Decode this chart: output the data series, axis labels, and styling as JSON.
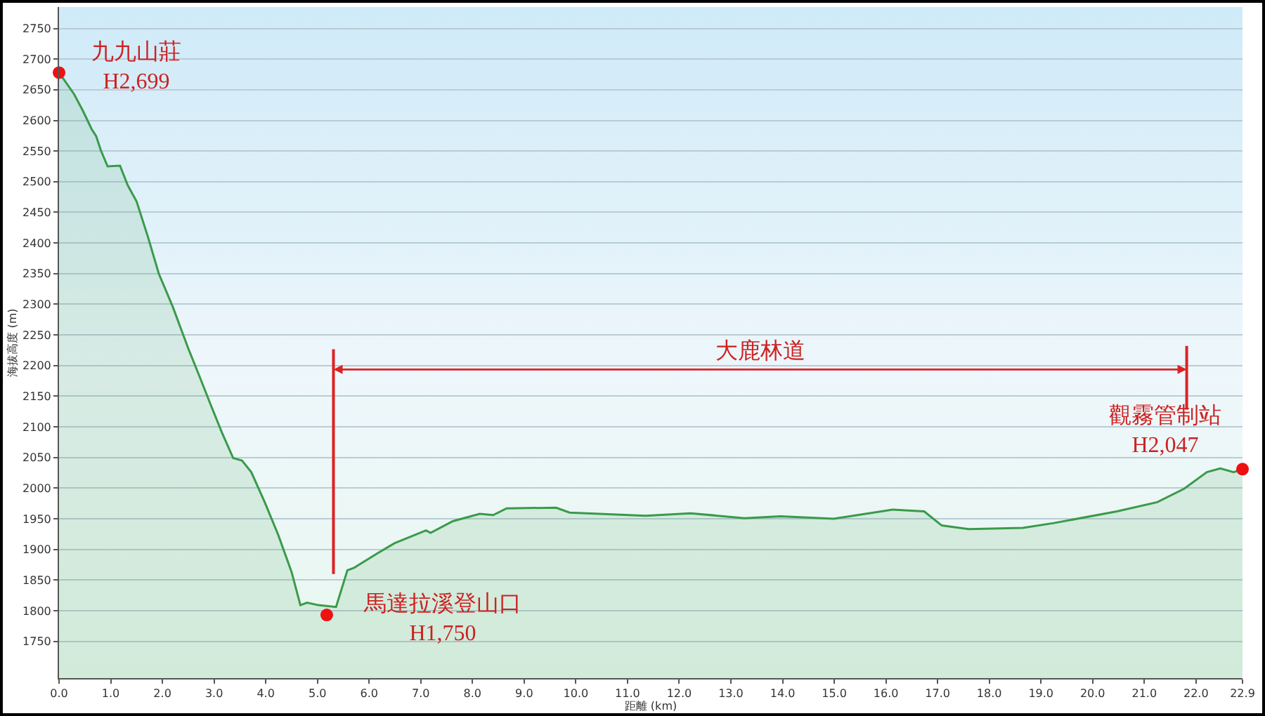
{
  "chart_data": {
    "type": "area",
    "xlabel": "距離 (km)",
    "ylabel": "海拔高度 (m)",
    "xlim": [
      0,
      22.9
    ],
    "ylim": [
      1690,
      2785
    ],
    "xticks": [
      {
        "value": 0,
        "label": "0.0"
      },
      {
        "value": 1,
        "label": "1.0"
      },
      {
        "value": 2,
        "label": "2.0"
      },
      {
        "value": 3,
        "label": "3.0"
      },
      {
        "value": 4,
        "label": "4.0"
      },
      {
        "value": 5,
        "label": "5.0"
      },
      {
        "value": 6,
        "label": "6.0"
      },
      {
        "value": 7,
        "label": "7.0"
      },
      {
        "value": 8,
        "label": "8.0"
      },
      {
        "value": 9,
        "label": "9.0"
      },
      {
        "value": 10,
        "label": "10.0"
      },
      {
        "value": 11,
        "label": "11.0"
      },
      {
        "value": 12,
        "label": "12.0"
      },
      {
        "value": 13,
        "label": "13.0"
      },
      {
        "value": 14,
        "label": "14.0"
      },
      {
        "value": 15,
        "label": "15.0"
      },
      {
        "value": 16,
        "label": "16.0"
      },
      {
        "value": 17,
        "label": "17.0"
      },
      {
        "value": 18,
        "label": "18.0"
      },
      {
        "value": 19,
        "label": "19.0"
      },
      {
        "value": 20,
        "label": "20.0"
      },
      {
        "value": 21,
        "label": "21.0"
      },
      {
        "value": 22,
        "label": "22.0"
      },
      {
        "value": 22.9,
        "label": "22.9"
      }
    ],
    "yticks": [
      1750,
      1800,
      1850,
      1900,
      1950,
      2000,
      2050,
      2100,
      2150,
      2200,
      2250,
      2300,
      2350,
      2400,
      2450,
      2500,
      2550,
      2600,
      2650,
      2700,
      2750
    ],
    "grid": "y",
    "series": [
      {
        "color": "#3a9a4a",
        "marker": "none",
        "x": [
          0,
          0.29,
          0.46,
          0.63,
          0.72,
          0.81,
          0.94,
          1.18,
          1.33,
          1.5,
          1.72,
          1.93,
          2.2,
          2.5,
          2.72,
          2.93,
          3.15,
          3.37,
          3.54,
          3.72,
          3.98,
          4.24,
          4.5,
          4.67,
          4.8,
          5.02,
          5.36,
          5.58,
          5.71,
          6.15,
          6.49,
          7.1,
          7.19,
          7.62,
          8.14,
          8.4,
          8.66,
          9.62,
          9.88,
          11.35,
          12.22,
          13.26,
          13.96,
          14.99,
          16.13,
          16.74,
          17.08,
          17.6,
          18.65,
          19.25,
          20.47,
          21.25,
          21.77,
          22.21,
          22.47,
          22.73,
          22.9
        ],
        "values": [
          2678,
          2643,
          2616,
          2586,
          2574,
          2551,
          2525,
          2526,
          2494,
          2468,
          2410,
          2350,
          2296,
          2228,
          2182,
          2137,
          2091,
          2049,
          2045,
          2026,
          1977,
          1924,
          1863,
          1809,
          1813,
          1809,
          1806,
          1866,
          1870,
          1893,
          1910,
          1931,
          1927,
          1946,
          1958,
          1956,
          1967,
          1968,
          1960,
          1955,
          1959,
          1951,
          1954,
          1950,
          1965,
          1962,
          1939,
          1933,
          1935,
          1943,
          1962,
          1977,
          1999,
          2026,
          2032,
          2026,
          2031
        ]
      },
      {
        "type": "scatter",
        "color": "#ee1111",
        "marker": "circle",
        "x": [
          0,
          5.18,
          22.9
        ],
        "values": [
          2678,
          1793,
          2031
        ]
      }
    ],
    "annotations": [
      {
        "text": "九九山莊\nH2,699",
        "x": 0,
        "y": 2678
      },
      {
        "text": "馬達拉溪登山口\nH1,750",
        "x": 5.18,
        "y": 1793
      },
      {
        "text": "觀霧管制站\nH2,047",
        "x": 22.9,
        "y": 2031
      },
      "大鹿林道"
    ],
    "ref_lines": [
      {
        "axis": "x",
        "value": 5.31,
        "color": "#dd2222"
      },
      {
        "axis": "x",
        "value": 21.82,
        "color": "#dd2222"
      }
    ]
  }
}
